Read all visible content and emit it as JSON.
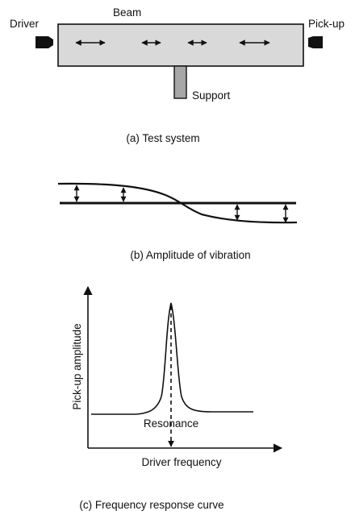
{
  "test_system": {
    "driver_label": "Driver",
    "beam_label": "Beam",
    "pickup_label": "Pick-up",
    "support_label": "Support",
    "caption": "(a) Test system"
  },
  "amplitude": {
    "caption": "(b) Amplitude of vibration"
  },
  "response": {
    "y_label": "Pick-up amplitude",
    "x_label": "Driver frequency",
    "resonance_label": "Resonance",
    "caption": "(c) Frequency response curve"
  },
  "colors": {
    "beam_fill": "#d9d9d9",
    "support_fill": "#a6a6a6",
    "ink": "#111111"
  }
}
